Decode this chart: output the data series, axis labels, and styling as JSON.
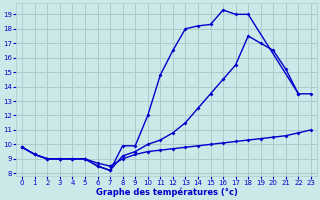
{
  "bg_color": "#cce8e8",
  "grid_color": "#aacccc",
  "line_color": "#0000cc",
  "xlabel": "Graphe des températures (°c)",
  "xlim": [
    -0.5,
    23.5
  ],
  "ylim": [
    7.8,
    19.8
  ],
  "xticks": [
    0,
    1,
    2,
    3,
    4,
    5,
    6,
    7,
    8,
    9,
    10,
    11,
    12,
    13,
    14,
    15,
    16,
    17,
    18,
    19,
    20,
    21,
    22,
    23
  ],
  "yticks": [
    8,
    9,
    10,
    11,
    12,
    13,
    14,
    15,
    16,
    17,
    18,
    19
  ],
  "line1_x": [
    0,
    1,
    2,
    3,
    4,
    5,
    6,
    7,
    8,
    9,
    10,
    11,
    12,
    13,
    14,
    15,
    16,
    17,
    18,
    22,
    23
  ],
  "line1_y": [
    9.8,
    9.3,
    9.0,
    9.0,
    9.0,
    9.0,
    8.5,
    8.2,
    9.9,
    9.9,
    12.0,
    14.8,
    16.5,
    18.0,
    18.2,
    18.3,
    19.3,
    19.0,
    19.0,
    13.5,
    13.5
  ],
  "line2_x": [
    0,
    1,
    2,
    3,
    4,
    5,
    6,
    7,
    8,
    9,
    10,
    11,
    12,
    13,
    14,
    15,
    16,
    17,
    18,
    19,
    20,
    21,
    22
  ],
  "line2_y": [
    9.8,
    9.3,
    9.0,
    9.0,
    9.0,
    9.0,
    8.5,
    8.2,
    9.2,
    9.5,
    10.0,
    10.3,
    10.8,
    11.5,
    12.5,
    13.5,
    14.5,
    15.5,
    17.5,
    17.0,
    16.5,
    15.2,
    13.5
  ],
  "line3_x": [
    0,
    1,
    2,
    3,
    4,
    5,
    6,
    7,
    8,
    9,
    10,
    11,
    12,
    13,
    14,
    15,
    16,
    17,
    18,
    19,
    20,
    21,
    22,
    23
  ],
  "line3_y": [
    9.8,
    9.3,
    9.0,
    9.0,
    9.0,
    9.0,
    8.7,
    8.5,
    9.0,
    9.3,
    9.5,
    9.6,
    9.7,
    9.8,
    9.9,
    10.0,
    10.1,
    10.2,
    10.3,
    10.4,
    10.5,
    10.6,
    10.8,
    11.0
  ]
}
